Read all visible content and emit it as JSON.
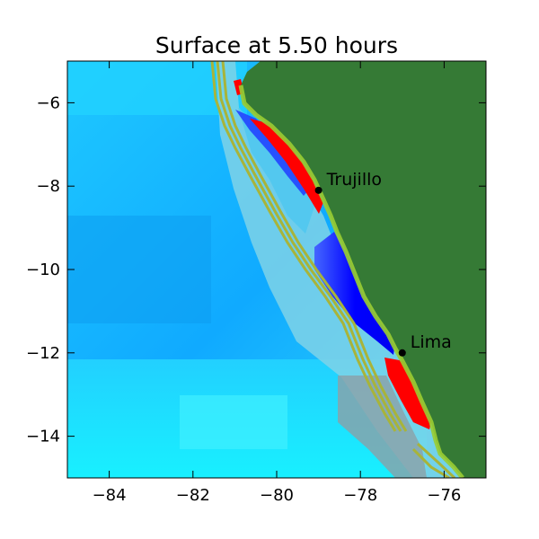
{
  "chart_data": {
    "type": "heatmap",
    "title": "Surface at 5.50 hours",
    "xlabel": "",
    "ylabel": "",
    "xlim": [
      -85,
      -75
    ],
    "ylim": [
      -15,
      -5
    ],
    "x_ticks": [
      -84,
      -82,
      -80,
      -78,
      -76
    ],
    "y_ticks": [
      -6,
      -8,
      -10,
      -12,
      -14
    ],
    "x_tick_labels": [
      "−84",
      "−82",
      "−80",
      "−78",
      "−76"
    ],
    "y_tick_labels": [
      "−6",
      "−8",
      "−10",
      "−12",
      "−14"
    ],
    "grid": false,
    "annotations": [
      {
        "label": "Trujillo",
        "x": -79.0,
        "y": -8.1
      },
      {
        "label": "Lima",
        "x": -77.0,
        "y": -12.0
      }
    ],
    "colors": {
      "land": "#357a35",
      "deep_water": "#1ab2ff",
      "elevated": "#ff0000",
      "depressed": "#0000ff",
      "contour": "#a8b43a",
      "shelf": "#88c8d8"
    }
  }
}
